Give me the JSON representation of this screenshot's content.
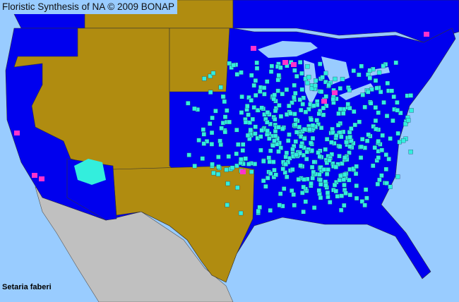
{
  "header": {
    "title": "Floristic Synthesis of NA © 2009 BONAP"
  },
  "species_label": "Setaria faberi",
  "colors": {
    "water": "#99ccff",
    "species_present_state": "#0000ee",
    "species_absent_state": "#b08c10",
    "species_present_county": "#33eedd",
    "rare_or_adventive": "#ff33cc",
    "outside_range": "#c0c0c0"
  }
}
